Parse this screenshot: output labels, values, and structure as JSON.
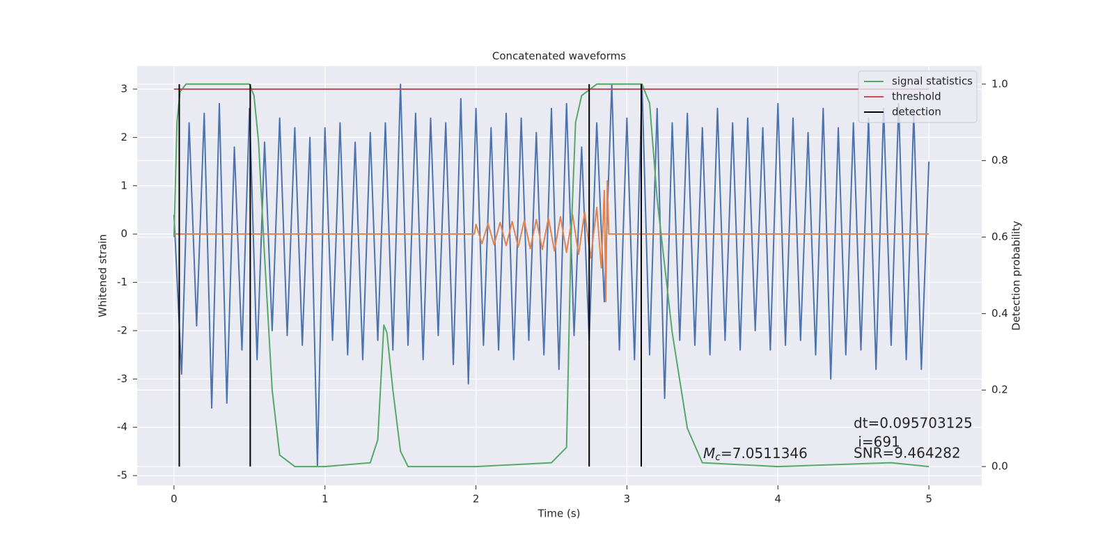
{
  "chart_data": {
    "type": "line",
    "title": "Concatenated waveforms",
    "xlabel": "Time (s)",
    "ylabel": "Whitened strain",
    "y2label": "Detection probability",
    "xlim": [
      -0.244,
      5.35
    ],
    "ylim": [
      -5.2,
      3.475
    ],
    "y2lim": [
      -0.049,
      1.047
    ],
    "xticks": [
      0,
      1,
      2,
      3,
      4,
      5
    ],
    "yticks": [
      -5,
      -4,
      -3,
      -2,
      -1,
      0,
      1,
      2,
      3
    ],
    "y2ticks": [
      {
        "value": 0,
        "label": "0.0"
      },
      {
        "value": 0.2,
        "label": "0.2"
      },
      {
        "value": 0.4,
        "label": "0.4"
      },
      {
        "value": 0.6,
        "label": "0.6"
      },
      {
        "value": 0.8,
        "label": "0.8"
      },
      {
        "value": 1,
        "label": "1.0"
      }
    ],
    "grid": true,
    "legend": "upper right",
    "series": [
      {
        "color": "#4c72b0",
        "x": [
          0,
          0.05,
          0.1,
          0.15,
          0.2,
          0.25,
          0.3,
          0.35,
          0.4,
          0.45,
          0.5,
          0.55,
          0.6,
          0.65,
          0.7,
          0.75,
          0.8,
          0.85,
          0.9,
          0.95,
          1.0,
          1.05,
          1.1,
          1.15,
          1.2,
          1.25,
          1.3,
          1.35,
          1.4,
          1.45,
          1.5,
          1.55,
          1.6,
          1.65,
          1.7,
          1.75,
          1.8,
          1.85,
          1.9,
          1.95,
          2.0,
          2.05,
          2.1,
          2.15,
          2.2,
          2.25,
          2.3,
          2.35,
          2.4,
          2.45,
          2.5,
          2.55,
          2.6,
          2.65,
          2.7,
          2.75,
          2.8,
          2.85,
          2.9,
          2.95,
          3.0,
          3.05,
          3.1,
          3.15,
          3.2,
          3.25,
          3.3,
          3.35,
          3.4,
          3.45,
          3.5,
          3.55,
          3.6,
          3.65,
          3.7,
          3.75,
          3.8,
          3.85,
          3.9,
          3.95,
          4.0,
          4.05,
          4.1,
          4.15,
          4.2,
          4.25,
          4.3,
          4.35,
          4.4,
          4.45,
          4.5,
          4.55,
          4.6,
          4.65,
          4.7,
          4.75,
          4.8,
          4.85,
          4.9,
          4.95,
          5.0
        ],
        "values": [
          0.4,
          -2.9,
          2.3,
          -1.9,
          2.5,
          -3.6,
          2.7,
          -3.5,
          1.8,
          -2.4,
          2.6,
          -2.6,
          1.9,
          -2.0,
          2.4,
          -2.1,
          2.2,
          -2.3,
          2.0,
          -4.8,
          2.2,
          -2.2,
          2.3,
          -2.5,
          1.9,
          -2.6,
          2.1,
          -2.2,
          2.3,
          -2.4,
          3.1,
          -2.3,
          2.5,
          -2.6,
          2.4,
          -2.1,
          2.3,
          -2.7,
          2.8,
          -3.1,
          2.6,
          -2.3,
          2.2,
          -2.4,
          2.5,
          -2.6,
          2.4,
          -2.2,
          2.1,
          -2.5,
          2.6,
          -2.8,
          2.7,
          -2.1,
          1.8,
          -2.2,
          2.3,
          -1.4,
          3.1,
          -2.4,
          2.4,
          -2.6,
          3.1,
          -2.5,
          2.6,
          -3.4,
          2.3,
          -2.2,
          2.5,
          -2.3,
          2.2,
          -2.5,
          2.6,
          -2.2,
          2.3,
          -2.4,
          2.4,
          -2.0,
          2.2,
          -2.4,
          2.7,
          -2.3,
          2.4,
          -2.2,
          2.1,
          -2.5,
          2.6,
          -3.0,
          2.2,
          -2.5,
          2.3,
          -2.4,
          2.4,
          -2.8,
          2.6,
          -2.3,
          2.7,
          -2.6,
          2.5,
          -2.8,
          1.5
        ]
      },
      {
        "color": "#dd8452",
        "x": [
          0,
          1.99,
          2.0,
          2.04,
          2.08,
          2.12,
          2.16,
          2.2,
          2.24,
          2.28,
          2.32,
          2.36,
          2.4,
          2.44,
          2.48,
          2.52,
          2.56,
          2.6,
          2.64,
          2.68,
          2.72,
          2.76,
          2.8,
          2.83,
          2.85,
          2.86,
          2.87,
          2.88,
          5
        ],
        "values": [
          0,
          0,
          0.2,
          -0.2,
          0.22,
          -0.22,
          0.24,
          -0.24,
          0.26,
          -0.27,
          0.28,
          -0.3,
          0.3,
          -0.32,
          0.33,
          -0.35,
          0.36,
          -0.38,
          0.4,
          -0.42,
          0.45,
          -0.5,
          0.55,
          -0.7,
          0.9,
          -1.4,
          1.1,
          0,
          0
        ]
      },
      {
        "name": "signal statistics",
        "color": "#55a868",
        "axis": "y2",
        "x": [
          0,
          0.02,
          0.04,
          0.08,
          0.5,
          0.53,
          0.56,
          0.6,
          0.65,
          0.7,
          0.8,
          1.0,
          1.3,
          1.35,
          1.39,
          1.41,
          1.45,
          1.5,
          1.55,
          2.0,
          2.5,
          2.6,
          2.63,
          2.66,
          2.7,
          2.8,
          3.1,
          3.15,
          3.2,
          3.3,
          3.4,
          3.5,
          4.0,
          4.75,
          5
        ],
        "values": [
          0.6,
          0.9,
          0.98,
          1.0,
          1.0,
          0.97,
          0.85,
          0.55,
          0.2,
          0.03,
          0.0,
          0.0,
          0.01,
          0.07,
          0.37,
          0.35,
          0.2,
          0.04,
          0.0,
          0.0,
          0.01,
          0.05,
          0.6,
          0.9,
          0.97,
          1.0,
          1.0,
          0.95,
          0.7,
          0.35,
          0.1,
          0.01,
          0.0,
          0.01,
          0.0
        ]
      },
      {
        "name": "threshold",
        "color": "#c44e52",
        "x": [
          0,
          5
        ],
        "values": [
          3,
          3
        ]
      },
      {
        "name": "detection",
        "color": "#000000",
        "axis": "y2",
        "x": [
          0.035,
          0.505,
          2.75,
          3.095
        ],
        "span": [
          0,
          1
        ]
      }
    ],
    "annotations": [
      {
        "text": "dt=0.095703125"
      },
      {
        "text": " i=691"
      },
      {
        "text": "SNR=9.464282"
      }
    ],
    "mc_label": {
      "symbol": "M",
      "subscript": "c",
      "text": "=7.0511346"
    }
  }
}
